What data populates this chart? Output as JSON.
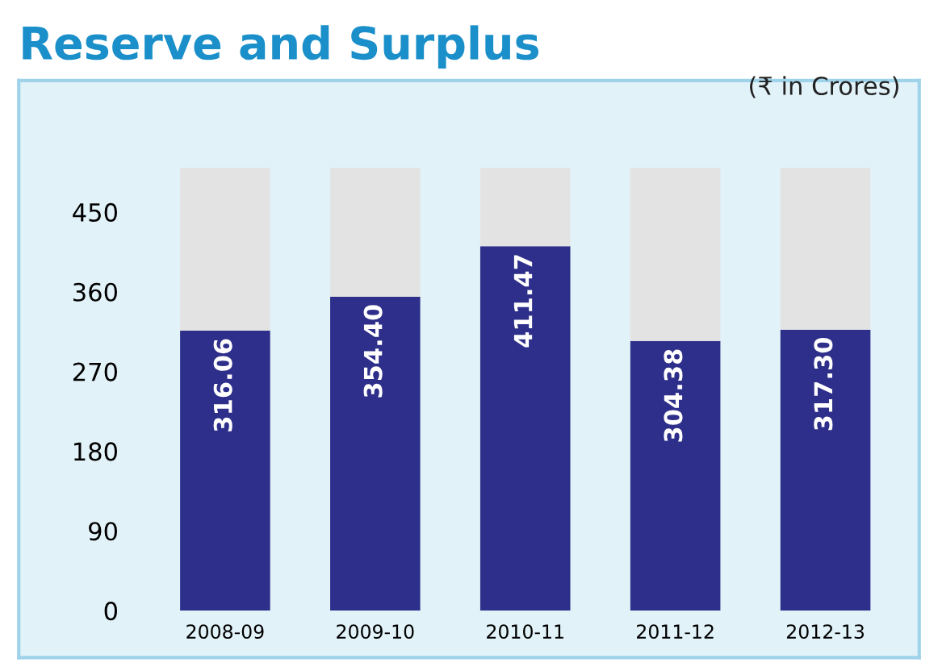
{
  "chart_data": {
    "type": "bar",
    "title": "Reserve and Surplus",
    "annotations": [
      "(₹ in Crores)"
    ],
    "categories": [
      "2008-09",
      "2009-10",
      "2010-11",
      "2011-12",
      "2012-13"
    ],
    "series": [
      {
        "color": "#2e2f8a",
        "values": [
          316.06,
          354.4,
          411.47,
          304.38,
          317.3
        ],
        "value_labels": [
          "316.06",
          "354.40",
          "411.47",
          "304.38",
          "317.30"
        ]
      },
      {
        "color": "#e3e3e3",
        "values": [
          184,
          146,
          89,
          196,
          183
        ]
      }
    ],
    "stacked": true,
    "ylim": [
      0,
      500
    ],
    "yticks": [
      0,
      90,
      180,
      270,
      360,
      450
    ],
    "grid": false,
    "legend": false
  }
}
